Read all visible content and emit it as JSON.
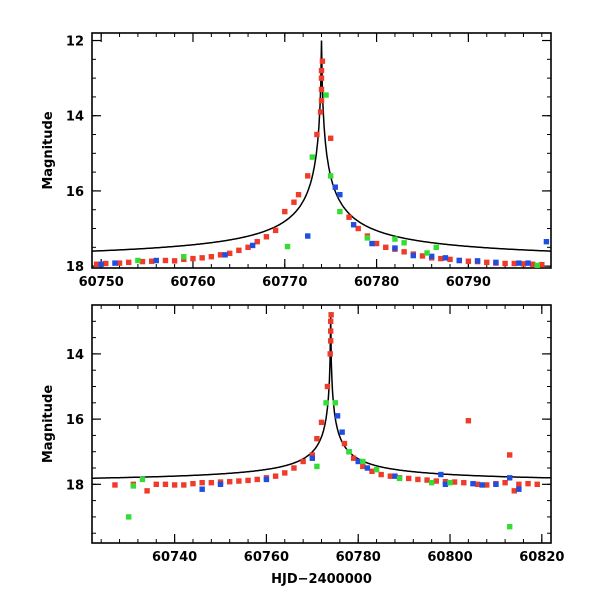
{
  "colors": {
    "red": "#ee3b2a",
    "blue": "#1f4fe0",
    "green": "#33dd33",
    "curve": "#000000"
  },
  "chart_data": [
    {
      "type": "scatter",
      "title": "",
      "xlabel": "",
      "ylabel": "Magnitude",
      "xlim": [
        60749,
        60799
      ],
      "ylim": [
        18.05,
        11.8
      ],
      "y_inverted": true,
      "xticks": [
        60750,
        60760,
        60770,
        60780,
        60790
      ],
      "yticks": [
        12,
        14,
        16,
        18
      ],
      "grid": false,
      "legend": "none",
      "model": {
        "t0": 60774,
        "peak": 12.0,
        "base": 17.96
      },
      "series": [
        {
          "color": "red",
          "points": [
            [
              60749.5,
              17.95
            ],
            [
              60750.5,
              17.93
            ],
            [
              60752,
              17.92
            ],
            [
              60753,
              17.9
            ],
            [
              60754.5,
              17.88
            ],
            [
              60755.5,
              17.87
            ],
            [
              60757,
              17.85
            ],
            [
              60758,
              17.86
            ],
            [
              60759,
              17.82
            ],
            [
              60760,
              17.8
            ],
            [
              60761,
              17.78
            ],
            [
              60762,
              17.75
            ],
            [
              60763,
              17.7
            ],
            [
              60764,
              17.66
            ],
            [
              60765,
              17.58
            ],
            [
              60766,
              17.5
            ],
            [
              60767,
              17.35
            ],
            [
              60768,
              17.22
            ],
            [
              60769,
              17.05
            ],
            [
              60770,
              16.55
            ],
            [
              60771,
              16.3
            ],
            [
              60771.5,
              16.1
            ],
            [
              60772.5,
              15.6
            ],
            [
              60773.5,
              14.5
            ],
            [
              60773.9,
              13.9
            ],
            [
              60774,
              13.6
            ],
            [
              60774,
              13.3
            ],
            [
              60774,
              13.0
            ],
            [
              60774,
              12.8
            ],
            [
              60774.1,
              12.55
            ],
            [
              60775,
              14.6
            ],
            [
              60777,
              16.7
            ],
            [
              60778,
              17.0
            ],
            [
              60779,
              17.2
            ],
            [
              60780,
              17.4
            ],
            [
              60781,
              17.5
            ],
            [
              60782,
              17.55
            ],
            [
              60783,
              17.62
            ],
            [
              60784,
              17.68
            ],
            [
              60785,
              17.73
            ],
            [
              60786,
              17.78
            ],
            [
              60787,
              17.8
            ],
            [
              60788,
              17.82
            ],
            [
              60789,
              17.85
            ],
            [
              60790,
              17.87
            ],
            [
              60791,
              17.88
            ],
            [
              60792,
              17.9
            ],
            [
              60793,
              17.92
            ],
            [
              60794,
              17.93
            ],
            [
              60795,
              17.93
            ],
            [
              60796,
              17.94
            ],
            [
              60797,
              17.95
            ],
            [
              60798,
              17.96
            ]
          ]
        },
        {
          "color": "blue",
          "points": [
            [
              60750,
              17.95
            ],
            [
              60751.5,
              17.92
            ],
            [
              60756,
              17.85
            ],
            [
              60763.5,
              17.7
            ],
            [
              60766.5,
              17.45
            ],
            [
              60775.5,
              15.9
            ],
            [
              60776,
              16.1
            ],
            [
              60777.5,
              16.9
            ],
            [
              60779.5,
              17.4
            ],
            [
              60782,
              17.52
            ],
            [
              60784,
              17.72
            ],
            [
              60786,
              17.74
            ],
            [
              60787.5,
              17.78
            ],
            [
              60789,
              17.85
            ],
            [
              60791,
              17.86
            ],
            [
              60793,
              17.9
            ],
            [
              60795.5,
              17.92
            ],
            [
              60796.5,
              17.92
            ],
            [
              60798.5,
              17.35
            ],
            [
              60772.5,
              17.2
            ]
          ]
        },
        {
          "color": "green",
          "points": [
            [
              60754,
              17.85
            ],
            [
              60759,
              17.75
            ],
            [
              60770.3,
              17.48
            ],
            [
              60773,
              15.1
            ],
            [
              60774.5,
              13.45
            ],
            [
              60775,
              15.6
            ],
            [
              60776,
              16.55
            ],
            [
              60779,
              17.25
            ],
            [
              60782,
              17.28
            ],
            [
              60783,
              17.38
            ],
            [
              60785.5,
              17.65
            ],
            [
              60786.5,
              17.5
            ],
            [
              60797.5,
              17.98
            ]
          ]
        }
      ]
    },
    {
      "type": "scatter",
      "title": "",
      "xlabel": "HJD−2400000",
      "ylabel": "Magnitude",
      "xlim": [
        60722,
        60822
      ],
      "ylim": [
        19.8,
        12.5
      ],
      "y_inverted": true,
      "xticks": [
        60740,
        60760,
        60780,
        60800,
        60820
      ],
      "yticks": [
        14,
        16,
        18
      ],
      "grid": false,
      "legend": "none",
      "model": {
        "t0": 60774,
        "peak": 12.85,
        "base": 18.0
      },
      "series": [
        {
          "color": "red",
          "points": [
            [
              60727,
              18.02
            ],
            [
              60731,
              18.0
            ],
            [
              60734,
              18.2
            ],
            [
              60736,
              18.0
            ],
            [
              60738,
              18.0
            ],
            [
              60740,
              18.02
            ],
            [
              60742,
              18.02
            ],
            [
              60744,
              17.98
            ],
            [
              60746,
              17.95
            ],
            [
              60748,
              17.95
            ],
            [
              60750,
              17.93
            ],
            [
              60752,
              17.92
            ],
            [
              60754,
              17.9
            ],
            [
              60756,
              17.88
            ],
            [
              60758,
              17.85
            ],
            [
              60760,
              17.8
            ],
            [
              60762,
              17.75
            ],
            [
              60764,
              17.65
            ],
            [
              60766,
              17.5
            ],
            [
              60768,
              17.3
            ],
            [
              60770,
              17.1
            ],
            [
              60771,
              16.6
            ],
            [
              60772,
              16.1
            ],
            [
              60773.3,
              15.0
            ],
            [
              60773.9,
              14.0
            ],
            [
              60774,
              13.6
            ],
            [
              60774,
              13.3
            ],
            [
              60774,
              13.0
            ],
            [
              60774.1,
              12.8
            ],
            [
              60777,
              16.75
            ],
            [
              60779,
              17.2
            ],
            [
              60781,
              17.45
            ],
            [
              60783,
              17.6
            ],
            [
              60785,
              17.7
            ],
            [
              60787,
              17.75
            ],
            [
              60789,
              17.8
            ],
            [
              60791,
              17.82
            ],
            [
              60793,
              17.85
            ],
            [
              60795,
              17.87
            ],
            [
              60797,
              17.9
            ],
            [
              60799,
              17.92
            ],
            [
              60801,
              17.93
            ],
            [
              60803,
              17.95
            ],
            [
              60804,
              16.05
            ],
            [
              60806,
              18.0
            ],
            [
              60808,
              18.02
            ],
            [
              60810,
              17.98
            ],
            [
              60812,
              17.95
            ],
            [
              60813,
              17.1
            ],
            [
              60814,
              18.2
            ],
            [
              60815,
              18.0
            ],
            [
              60817,
              17.98
            ],
            [
              60819,
              18.0
            ]
          ]
        },
        {
          "color": "blue",
          "points": [
            [
              60746,
              18.15
            ],
            [
              60750,
              18.0
            ],
            [
              60760,
              17.85
            ],
            [
              60770,
              17.2
            ],
            [
              60775.5,
              15.9
            ],
            [
              60776.5,
              16.4
            ],
            [
              60778,
              17.0
            ],
            [
              60780,
              17.3
            ],
            [
              60782,
              17.5
            ],
            [
              60788,
              17.75
            ],
            [
              60798,
              17.7
            ],
            [
              60799,
              18.0
            ],
            [
              60805,
              17.98
            ],
            [
              60807,
              18.02
            ],
            [
              60810,
              18.0
            ],
            [
              60813,
              17.8
            ],
            [
              60815,
              18.15
            ]
          ]
        },
        {
          "color": "green",
          "points": [
            [
              60730,
              19.0
            ],
            [
              60731,
              18.05
            ],
            [
              60733,
              17.85
            ],
            [
              60771,
              17.45
            ],
            [
              60773,
              15.5
            ],
            [
              60775,
              15.5
            ],
            [
              60778,
              17.0
            ],
            [
              60781,
              17.3
            ],
            [
              60784,
              17.55
            ],
            [
              60789,
              17.82
            ],
            [
              60796,
              17.95
            ],
            [
              60800,
              17.95
            ],
            [
              60813,
              19.3
            ]
          ]
        }
      ]
    }
  ]
}
